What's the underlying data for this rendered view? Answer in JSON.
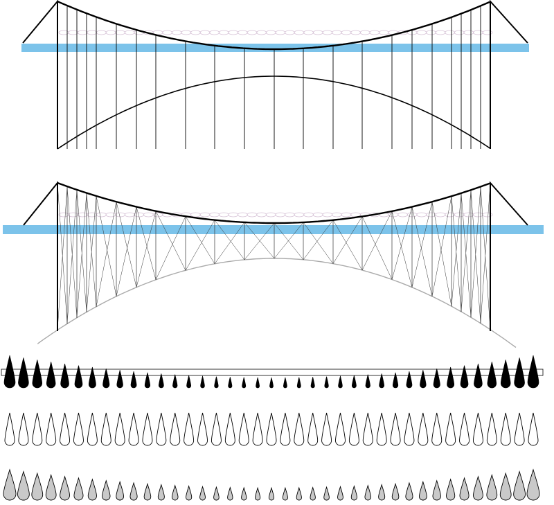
{
  "colors": {
    "background": "#ffffff",
    "deck_blue": "#7cc3ea",
    "line": "#000000",
    "truss_line": "#333333",
    "arch_gray": "#aaaaaa",
    "ring_pink": "#d6c2d6",
    "drop_black": "#000000",
    "drop_white": "#ffffff",
    "drop_gray": "#c9c9c9"
  },
  "diagram": {
    "panels": [
      {
        "id": "suspension-vertical-hangers",
        "kind": "vertical-hangers",
        "hanger_count": 24
      },
      {
        "id": "suspension-truss-hangers",
        "kind": "truss-hangers",
        "hanger_count": 24
      },
      {
        "id": "drop-row-black",
        "kind": "drop-row",
        "fill": "black",
        "count": 39,
        "size_profile": "large-ends-small-center"
      },
      {
        "id": "drop-row-white",
        "kind": "drop-row",
        "fill": "white",
        "count": 39,
        "size_profile": "uniform"
      },
      {
        "id": "drop-row-gray",
        "kind": "drop-row",
        "fill": "gray",
        "count": 39,
        "size_profile": "large-ends-small-center"
      }
    ]
  }
}
